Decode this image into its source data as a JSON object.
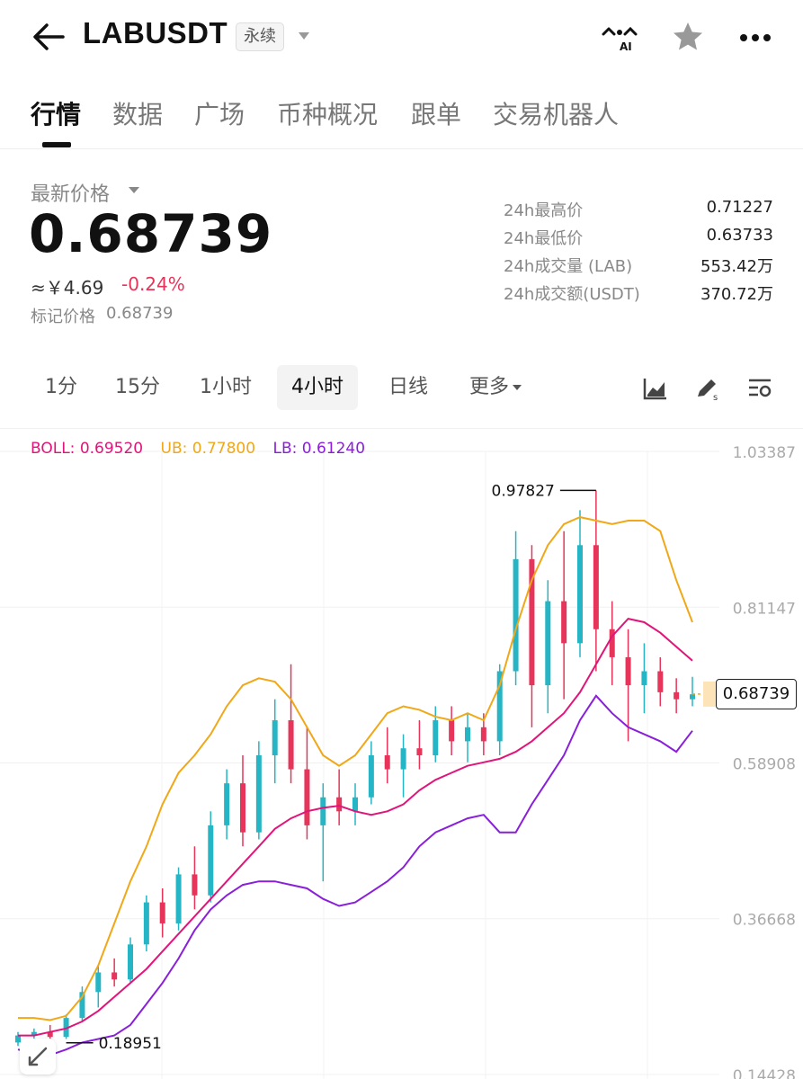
{
  "header": {
    "symbol": "LABUSDT",
    "contract_type": "永续"
  },
  "tabs": [
    "行情",
    "数据",
    "广场",
    "币种概况",
    "跟单",
    "交易机器人"
  ],
  "ticker": {
    "price_label": "最新价格",
    "last_price": "0.68739",
    "cny_price": "≈￥4.69",
    "change_pct": "-0.24%",
    "mark_price_label": "标记价格",
    "mark_price": "0.68739"
  },
  "stats": [
    {
      "label": "24h最高价",
      "value": "0.71227"
    },
    {
      "label": "24h最低价",
      "value": "0.63733"
    },
    {
      "label": "24h成交量 (LAB)",
      "value": "553.42万"
    },
    {
      "label": "24h成交额(USDT)",
      "value": "370.72万"
    }
  ],
  "timeframes": [
    "1分",
    "15分",
    "1小时",
    "4小时",
    "日线"
  ],
  "timeframe_more": "更多",
  "active_timeframe": "4小时",
  "indicator": {
    "boll": "BOLL: 0.69520",
    "ub": "UB: 0.77800",
    "lb": "LB: 0.61240"
  },
  "colors": {
    "up": "#26b5c4",
    "down": "#e6345a",
    "boll": "#e0157a",
    "ub": "#f0a818",
    "lb": "#8a1fd9"
  },
  "chart_data": {
    "type": "candlestick",
    "y_axis_ticks": [
      "1.03387",
      "0.81147",
      "0.58908",
      "0.36668",
      "0.14428"
    ],
    "ylim": [
      0.14428,
      1.03387
    ],
    "current_price_tag": "0.68739",
    "max_marker": "0.97827",
    "min_marker": "0.18951",
    "boll_mid": [
      0.2,
      0.2,
      0.205,
      0.21,
      0.22,
      0.235,
      0.255,
      0.275,
      0.295,
      0.32,
      0.345,
      0.37,
      0.395,
      0.42,
      0.445,
      0.47,
      0.495,
      0.51,
      0.52,
      0.525,
      0.528,
      0.52,
      0.515,
      0.52,
      0.53,
      0.55,
      0.565,
      0.575,
      0.585,
      0.59,
      0.595,
      0.605,
      0.62,
      0.64,
      0.66,
      0.69,
      0.73,
      0.77,
      0.795,
      0.79,
      0.775,
      0.755,
      0.735
    ],
    "boll_ub": [
      0.225,
      0.225,
      0.222,
      0.228,
      0.255,
      0.3,
      0.36,
      0.42,
      0.47,
      0.53,
      0.575,
      0.6,
      0.63,
      0.67,
      0.7,
      0.71,
      0.705,
      0.68,
      0.64,
      0.6,
      0.585,
      0.6,
      0.63,
      0.66,
      0.67,
      0.665,
      0.655,
      0.65,
      0.66,
      0.65,
      0.7,
      0.78,
      0.85,
      0.9,
      0.93,
      0.94,
      0.935,
      0.93,
      0.935,
      0.935,
      0.92,
      0.85,
      0.79
    ],
    "boll_lb": [
      0.18,
      0.175,
      0.172,
      0.18,
      0.19,
      0.195,
      0.2,
      0.215,
      0.245,
      0.275,
      0.31,
      0.35,
      0.38,
      0.4,
      0.415,
      0.42,
      0.42,
      0.415,
      0.41,
      0.395,
      0.385,
      0.39,
      0.405,
      0.42,
      0.44,
      0.47,
      0.49,
      0.5,
      0.51,
      0.515,
      0.49,
      0.49,
      0.53,
      0.565,
      0.6,
      0.65,
      0.685,
      0.66,
      0.64,
      0.63,
      0.62,
      0.605,
      0.635
    ],
    "candles": [
      {
        "o": 0.19,
        "h": 0.205,
        "l": 0.185,
        "c": 0.2
      },
      {
        "o": 0.2,
        "h": 0.21,
        "l": 0.19,
        "c": 0.205
      },
      {
        "o": 0.205,
        "h": 0.215,
        "l": 0.195,
        "c": 0.198
      },
      {
        "o": 0.198,
        "h": 0.23,
        "l": 0.195,
        "c": 0.225
      },
      {
        "o": 0.225,
        "h": 0.27,
        "l": 0.22,
        "c": 0.262
      },
      {
        "o": 0.262,
        "h": 0.3,
        "l": 0.24,
        "c": 0.29
      },
      {
        "o": 0.29,
        "h": 0.31,
        "l": 0.27,
        "c": 0.28
      },
      {
        "o": 0.28,
        "h": 0.34,
        "l": 0.275,
        "c": 0.33
      },
      {
        "o": 0.33,
        "h": 0.4,
        "l": 0.32,
        "c": 0.39
      },
      {
        "o": 0.39,
        "h": 0.41,
        "l": 0.34,
        "c": 0.36
      },
      {
        "o": 0.36,
        "h": 0.44,
        "l": 0.35,
        "c": 0.43
      },
      {
        "o": 0.43,
        "h": 0.47,
        "l": 0.38,
        "c": 0.4
      },
      {
        "o": 0.4,
        "h": 0.52,
        "l": 0.39,
        "c": 0.5
      },
      {
        "o": 0.5,
        "h": 0.58,
        "l": 0.48,
        "c": 0.56
      },
      {
        "o": 0.56,
        "h": 0.6,
        "l": 0.47,
        "c": 0.49
      },
      {
        "o": 0.49,
        "h": 0.62,
        "l": 0.48,
        "c": 0.6
      },
      {
        "o": 0.6,
        "h": 0.68,
        "l": 0.56,
        "c": 0.65
      },
      {
        "o": 0.65,
        "h": 0.73,
        "l": 0.56,
        "c": 0.58
      },
      {
        "o": 0.58,
        "h": 0.64,
        "l": 0.48,
        "c": 0.5
      },
      {
        "o": 0.5,
        "h": 0.56,
        "l": 0.42,
        "c": 0.54
      },
      {
        "o": 0.54,
        "h": 0.58,
        "l": 0.5,
        "c": 0.52
      },
      {
        "o": 0.52,
        "h": 0.56,
        "l": 0.5,
        "c": 0.54
      },
      {
        "o": 0.54,
        "h": 0.62,
        "l": 0.53,
        "c": 0.6
      },
      {
        "o": 0.6,
        "h": 0.64,
        "l": 0.56,
        "c": 0.58
      },
      {
        "o": 0.58,
        "h": 0.63,
        "l": 0.54,
        "c": 0.61
      },
      {
        "o": 0.61,
        "h": 0.65,
        "l": 0.58,
        "c": 0.6
      },
      {
        "o": 0.6,
        "h": 0.67,
        "l": 0.59,
        "c": 0.65
      },
      {
        "o": 0.65,
        "h": 0.67,
        "l": 0.6,
        "c": 0.62
      },
      {
        "o": 0.62,
        "h": 0.66,
        "l": 0.59,
        "c": 0.64
      },
      {
        "o": 0.64,
        "h": 0.66,
        "l": 0.6,
        "c": 0.62
      },
      {
        "o": 0.62,
        "h": 0.73,
        "l": 0.6,
        "c": 0.72
      },
      {
        "o": 0.72,
        "h": 0.92,
        "l": 0.7,
        "c": 0.88
      },
      {
        "o": 0.88,
        "h": 0.9,
        "l": 0.64,
        "c": 0.7
      },
      {
        "o": 0.7,
        "h": 0.85,
        "l": 0.66,
        "c": 0.82
      },
      {
        "o": 0.82,
        "h": 0.92,
        "l": 0.68,
        "c": 0.76
      },
      {
        "o": 0.76,
        "h": 0.95,
        "l": 0.74,
        "c": 0.9
      },
      {
        "o": 0.9,
        "h": 0.978,
        "l": 0.72,
        "c": 0.78
      },
      {
        "o": 0.78,
        "h": 0.82,
        "l": 0.7,
        "c": 0.74
      },
      {
        "o": 0.74,
        "h": 0.78,
        "l": 0.62,
        "c": 0.7
      },
      {
        "o": 0.7,
        "h": 0.76,
        "l": 0.66,
        "c": 0.72
      },
      {
        "o": 0.72,
        "h": 0.74,
        "l": 0.67,
        "c": 0.69
      },
      {
        "o": 0.69,
        "h": 0.71,
        "l": 0.66,
        "c": 0.68
      },
      {
        "o": 0.68,
        "h": 0.712,
        "l": 0.67,
        "c": 0.687
      }
    ]
  }
}
